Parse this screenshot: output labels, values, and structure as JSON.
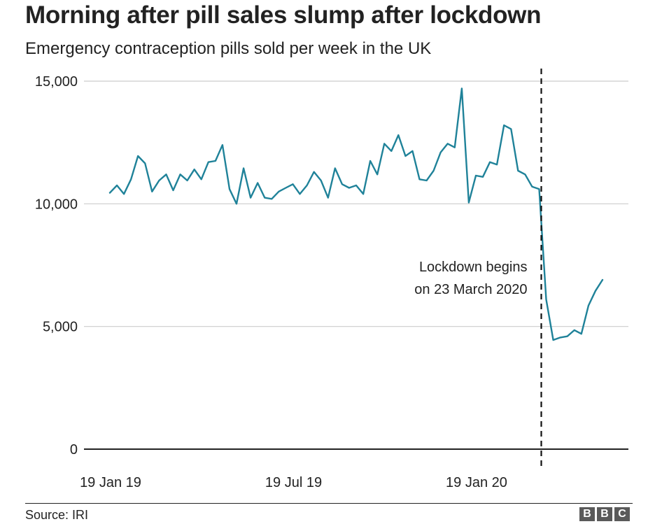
{
  "title": "Morning after pill sales slump after lockdown",
  "subtitle": "Emergency contraception pills sold per week in the UK",
  "source": "Source: IRI",
  "logo": [
    "B",
    "B",
    "C"
  ],
  "colors": {
    "line": "#1f8299",
    "grid": "#cccccc",
    "axis": "#222222",
    "marker": "#111111"
  },
  "chart_data": {
    "type": "line",
    "title": "Morning after pill sales slump after lockdown",
    "subtitle": "Emergency contraception pills sold per week in the UK",
    "xlabel": "",
    "ylabel": "",
    "ylim": [
      0,
      15000
    ],
    "yticks": [
      0,
      5000,
      10000,
      15000
    ],
    "ytick_labels": [
      "0",
      "5,000",
      "10,000",
      "15,000"
    ],
    "grid": true,
    "x_start_week": 0,
    "x_end_week": 79,
    "xticks": [
      {
        "week": 0,
        "label": "19 Jan 19"
      },
      {
        "week": 26,
        "label": "19 Jul 19"
      },
      {
        "week": 52,
        "label": "19 Jan 20"
      }
    ],
    "series": [
      {
        "name": "Emergency contraception pills sold per week",
        "values": [
          10450,
          10750,
          10400,
          11000,
          11950,
          11650,
          10500,
          10950,
          11200,
          10550,
          11200,
          10950,
          11400,
          11000,
          11700,
          11750,
          12400,
          10600,
          10000,
          11450,
          10250,
          10850,
          10250,
          10200,
          10500,
          10650,
          10800,
          10400,
          10750,
          11300,
          10950,
          10250,
          11450,
          10800,
          10650,
          10750,
          10400,
          11750,
          11200,
          12450,
          12150,
          12800,
          11950,
          12150,
          11000,
          10950,
          11350,
          12100,
          12450,
          12300,
          14700,
          10050,
          11150,
          11100,
          11700,
          11600,
          13200,
          13050,
          11350,
          11200,
          10700,
          10600,
          6100,
          4450,
          4550,
          4600,
          4850,
          4700,
          5850,
          6450,
          6900
        ]
      }
    ],
    "annotation": {
      "label_lines": [
        "Lockdown begins",
        "on 23 March 2020"
      ],
      "week": 61.3
    }
  }
}
